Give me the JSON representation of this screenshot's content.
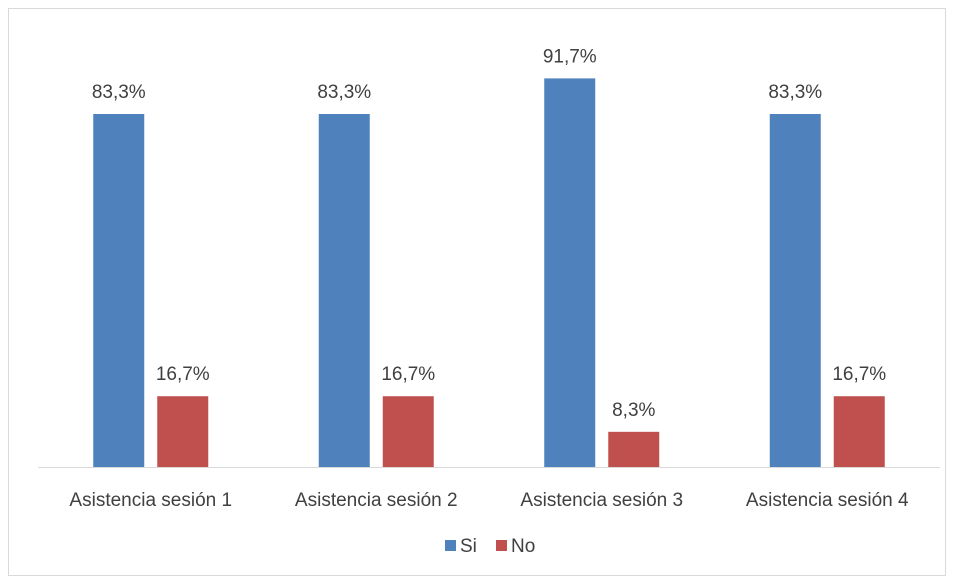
{
  "chart_data": {
    "type": "bar",
    "categories": [
      "Asistencia sesión 1",
      "Asistencia sesión 2",
      "Asistencia sesión 3",
      "Asistencia sesión 4"
    ],
    "series": [
      {
        "name": "Si",
        "color": "#4F81BD",
        "values": [
          83.3,
          83.3,
          91.7,
          83.3
        ],
        "labels": [
          "83,3%",
          "83,3%",
          "91,7%",
          "83,3%"
        ]
      },
      {
        "name": "No",
        "color": "#C0504D",
        "values": [
          16.7,
          16.7,
          8.3,
          16.7
        ],
        "labels": [
          "16,7%",
          "16,7%",
          "8,3%",
          "16,7%"
        ]
      }
    ],
    "title": "",
    "xlabel": "",
    "ylabel": "",
    "ylim": [
      0,
      100
    ],
    "grid": false,
    "legend": "bottom"
  }
}
